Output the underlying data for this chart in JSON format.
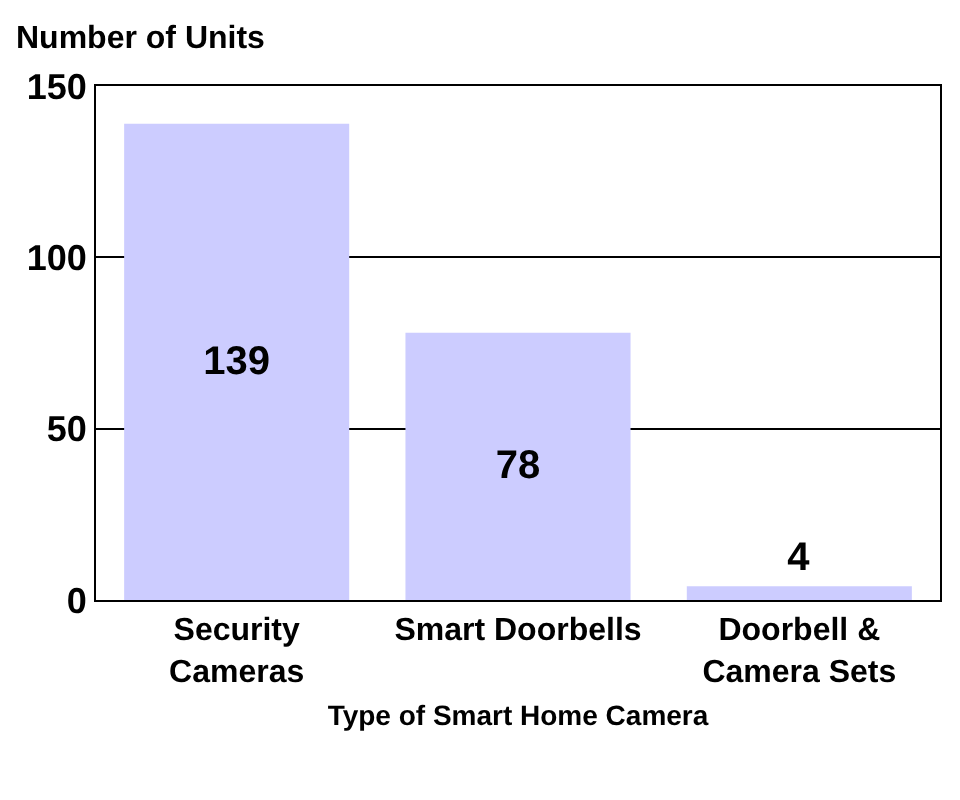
{
  "chart_data": {
    "type": "bar",
    "ylabel": "Number of Units",
    "xlabel": "Type of Smart Home Camera",
    "categories": [
      "Security Cameras",
      "Smart Doorbells",
      "Doorbell & Camera Sets"
    ],
    "values": [
      139,
      78,
      4
    ],
    "color": "#ccccff",
    "ylim": [
      0,
      150
    ],
    "yticks": [
      0,
      50,
      100,
      150
    ],
    "grid": "y",
    "data_labels": true
  }
}
